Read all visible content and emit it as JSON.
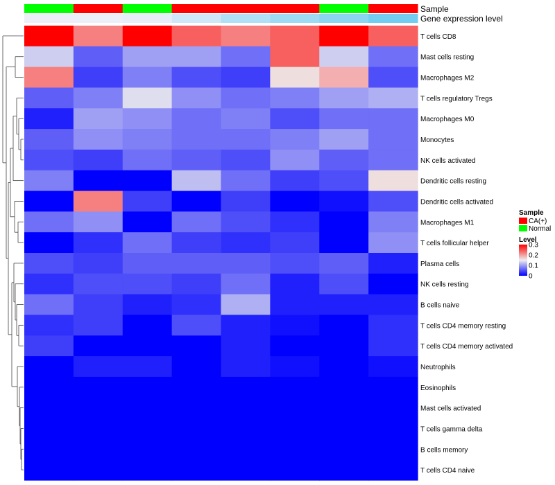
{
  "chart_data": {
    "type": "heatmap",
    "annotation_rows": [
      {
        "label": "Sample",
        "values": [
          "Normal",
          "CA(+)",
          "Normal",
          "CA(+)",
          "CA(+)",
          "CA(+)",
          "Normal",
          "CA(+)"
        ]
      },
      {
        "label": "Gene expression level",
        "values": [
          0.02,
          0.03,
          0.06,
          0.22,
          0.42,
          0.55,
          0.68,
          0.85
        ]
      }
    ],
    "rows": [
      "T cells CD8",
      "Mast cells resting",
      "Macrophages M2",
      "T cells regulatory  Tregs",
      "Macrophages M0",
      "Monocytes",
      "NK cells activated",
      "Dendritic cells resting",
      "Dendritic cells activated",
      "Macrophages M1",
      "T cells follicular helper",
      "Plasma cells",
      "NK cells resting",
      "B cells naive",
      "T cells CD4 memory resting",
      "T cells CD4 memory activated",
      "Neutrophils",
      "Eosinophils",
      "Mast cells activated",
      "T cells gamma delta",
      "B cells memory",
      "T cells CD4 naive"
    ],
    "values": [
      [
        0.3,
        0.22,
        0.3,
        0.24,
        0.22,
        0.24,
        0.3,
        0.24
      ],
      [
        0.13,
        0.06,
        0.1,
        0.1,
        0.07,
        0.24,
        0.13,
        0.07
      ],
      [
        0.22,
        0.04,
        0.08,
        0.05,
        0.04,
        0.16,
        0.19,
        0.05
      ],
      [
        0.06,
        0.08,
        0.14,
        0.09,
        0.07,
        0.08,
        0.1,
        0.11
      ],
      [
        0.02,
        0.1,
        0.09,
        0.07,
        0.08,
        0.05,
        0.07,
        0.07
      ],
      [
        0.06,
        0.09,
        0.08,
        0.07,
        0.07,
        0.08,
        0.1,
        0.07
      ],
      [
        0.05,
        0.04,
        0.07,
        0.06,
        0.05,
        0.09,
        0.06,
        0.07
      ],
      [
        0.08,
        0.0,
        0.0,
        0.12,
        0.07,
        0.04,
        0.05,
        0.16
      ],
      [
        0.0,
        0.22,
        0.04,
        0.0,
        0.04,
        0.0,
        0.01,
        0.05
      ],
      [
        0.07,
        0.09,
        0.0,
        0.07,
        0.05,
        0.03,
        0.0,
        0.08
      ],
      [
        0.0,
        0.03,
        0.07,
        0.04,
        0.03,
        0.04,
        0.0,
        0.09
      ],
      [
        0.05,
        0.04,
        0.06,
        0.06,
        0.06,
        0.05,
        0.06,
        0.02
      ],
      [
        0.03,
        0.05,
        0.05,
        0.04,
        0.07,
        0.02,
        0.05,
        0.0
      ],
      [
        0.07,
        0.04,
        0.02,
        0.03,
        0.11,
        0.02,
        0.02,
        0.02
      ],
      [
        0.03,
        0.04,
        0.0,
        0.05,
        0.02,
        0.01,
        0.0,
        0.03
      ],
      [
        0.04,
        0.0,
        0.0,
        0.0,
        0.02,
        0.0,
        0.0,
        0.03
      ],
      [
        0.0,
        0.02,
        0.02,
        0.0,
        0.02,
        0.01,
        0.0,
        0.01
      ],
      [
        0,
        0,
        0,
        0,
        0,
        0,
        0,
        0
      ],
      [
        0,
        0,
        0,
        0,
        0,
        0,
        0,
        0
      ],
      [
        0,
        0,
        0,
        0,
        0,
        0,
        0,
        0
      ],
      [
        0,
        0,
        0,
        0,
        0,
        0,
        0,
        0
      ],
      [
        0,
        0,
        0,
        0,
        0,
        0,
        0,
        0
      ]
    ],
    "value_range": [
      0,
      0.3
    ],
    "legend": {
      "sample_title": "Sample",
      "sample_entries": [
        {
          "label": "CA(+)",
          "color": "#ff0000"
        },
        {
          "label": "Normal",
          "color": "#00ff00"
        }
      ],
      "level_title": "Level",
      "level_ticks": [
        "0.3",
        "0.2",
        "0.1",
        "0"
      ],
      "level_tick_values": [
        0.3,
        0.2,
        0.1,
        0
      ],
      "placement": "right"
    },
    "dendrogram": "row dendrogram on left"
  },
  "colors": {
    "low": "#0000ff",
    "mid": "#eeeeee",
    "high": "#ff0000",
    "ca": "#ff0000",
    "normal": "#00ff00",
    "expr_low": "#f0f0f8",
    "expr_high": "#5bc8f0"
  }
}
